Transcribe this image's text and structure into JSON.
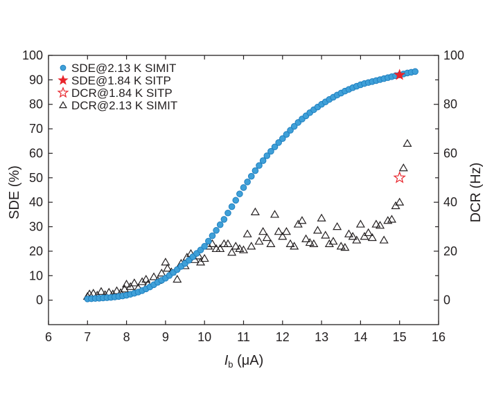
{
  "chart_data": {
    "type": "scatter",
    "title": "",
    "xlabel_main": "I",
    "xlabel_sub": "b",
    "xlabel_unit": " (μA)",
    "ylabel": "SDE (%)",
    "y2label": "DCR (Hz)",
    "xlim": [
      6,
      16
    ],
    "ylim": [
      -10,
      100
    ],
    "y2lim": [
      -10,
      100
    ],
    "xticks": [
      6,
      7,
      8,
      9,
      10,
      11,
      12,
      13,
      14,
      15,
      16
    ],
    "yticks": [
      0,
      10,
      20,
      30,
      40,
      50,
      60,
      70,
      80,
      90,
      100
    ],
    "y2ticks": [
      0,
      20,
      40,
      60,
      80,
      100
    ],
    "y2minor": [
      10,
      30,
      50,
      70,
      90
    ],
    "legend_position": "top-left",
    "series": [
      {
        "name": "SDE@2.13 K SIMIT",
        "axis": "left",
        "marker": "circle",
        "color": "#3fa0d8",
        "x_start": 7.0,
        "x_step": 0.1,
        "values": [
          0.5,
          0.6,
          0.7,
          0.8,
          0.9,
          1.0,
          1.1,
          1.3,
          1.5,
          1.7,
          2.0,
          2.4,
          2.8,
          3.3,
          3.9,
          4.6,
          5.4,
          6.3,
          7.3,
          8.1,
          9.0,
          10.1,
          11.3,
          12.5,
          13.8,
          15.0,
          16.3,
          17.7,
          19.1,
          20.5,
          22.0,
          24.1,
          26.3,
          28.5,
          30.8,
          33.0,
          35.6,
          38.2,
          40.8,
          43.4,
          46.0,
          48.3,
          50.6,
          52.9,
          55.0,
          57.0,
          59.0,
          60.8,
          62.6,
          64.4,
          66.0,
          67.7,
          69.4,
          71.0,
          72.6,
          74.0,
          75.3,
          76.6,
          77.8,
          78.9,
          80.0,
          81.0,
          82.0,
          82.9,
          83.8,
          84.6,
          85.4,
          86.1,
          86.8,
          87.4,
          88.0,
          88.5,
          88.9,
          89.3,
          89.7,
          90.1,
          90.5,
          90.9,
          91.3,
          91.7,
          92.0,
          92.4,
          92.8,
          93.1,
          93.4
        ]
      },
      {
        "name": "SDE@1.84 K SITP",
        "axis": "left",
        "marker": "filled-star",
        "color": "#e8242b",
        "points": [
          [
            15.0,
            92
          ]
        ]
      },
      {
        "name": "DCR@1.84 K SITP",
        "axis": "right",
        "marker": "open-star",
        "color": "#e8242b",
        "points": [
          [
            15.0,
            50
          ]
        ]
      },
      {
        "name": "DCR@2.13 K SIMIT",
        "axis": "right",
        "marker": "open-triangle",
        "color": "#231f20",
        "points": [
          [
            7.0,
            1.5
          ],
          [
            7.05,
            2.5
          ],
          [
            7.15,
            2.8
          ],
          [
            7.25,
            2.0
          ],
          [
            7.35,
            3.5
          ],
          [
            7.45,
            2.2
          ],
          [
            7.55,
            3.2
          ],
          [
            7.65,
            2.5
          ],
          [
            7.75,
            3.8
          ],
          [
            7.85,
            3.0
          ],
          [
            7.95,
            4.5
          ],
          [
            8.0,
            6.5
          ],
          [
            8.1,
            5.5
          ],
          [
            8.2,
            7.0
          ],
          [
            8.3,
            5.0
          ],
          [
            8.4,
            7.5
          ],
          [
            8.5,
            8.5
          ],
          [
            8.55,
            6.5
          ],
          [
            8.7,
            9.5
          ],
          [
            8.8,
            8.0
          ],
          [
            8.9,
            11.0
          ],
          [
            9.0,
            15.5
          ],
          [
            9.05,
            13.0
          ],
          [
            9.15,
            11.5
          ],
          [
            9.3,
            8.5
          ],
          [
            9.4,
            15.0
          ],
          [
            9.5,
            14.0
          ],
          [
            9.55,
            17.5
          ],
          [
            9.65,
            19.0
          ],
          [
            9.75,
            16.5
          ],
          [
            9.85,
            18.0
          ],
          [
            9.9,
            15.5
          ],
          [
            10.0,
            17.0
          ],
          [
            10.1,
            22.0
          ],
          [
            10.2,
            23.0
          ],
          [
            10.3,
            21.0
          ],
          [
            10.4,
            21.0
          ],
          [
            10.5,
            23.0
          ],
          [
            10.6,
            23.0
          ],
          [
            10.7,
            19.5
          ],
          [
            10.8,
            22.0
          ],
          [
            10.9,
            21.0
          ],
          [
            11.0,
            20.5
          ],
          [
            11.1,
            27.0
          ],
          [
            11.2,
            22.0
          ],
          [
            11.3,
            36.0
          ],
          [
            11.4,
            24.0
          ],
          [
            11.5,
            28.0
          ],
          [
            11.6,
            25.5
          ],
          [
            11.7,
            23.0
          ],
          [
            11.8,
            35.0
          ],
          [
            11.9,
            28.0
          ],
          [
            12.0,
            26.0
          ],
          [
            12.1,
            28.0
          ],
          [
            12.2,
            23.0
          ],
          [
            12.3,
            22.0
          ],
          [
            12.4,
            31.0
          ],
          [
            12.5,
            32.5
          ],
          [
            12.6,
            25.0
          ],
          [
            12.7,
            23.5
          ],
          [
            12.8,
            23.0
          ],
          [
            12.9,
            28.5
          ],
          [
            13.0,
            33.5
          ],
          [
            13.1,
            26.5
          ],
          [
            13.2,
            23.0
          ],
          [
            13.3,
            24.0
          ],
          [
            13.4,
            30.0
          ],
          [
            13.5,
            22.0
          ],
          [
            13.6,
            21.5
          ],
          [
            13.7,
            27.0
          ],
          [
            13.8,
            26.0
          ],
          [
            13.9,
            24.5
          ],
          [
            14.0,
            31.0
          ],
          [
            14.1,
            26.0
          ],
          [
            14.2,
            27.5
          ],
          [
            14.3,
            25.5
          ],
          [
            14.4,
            31.0
          ],
          [
            14.5,
            30.5
          ],
          [
            14.6,
            24.5
          ],
          [
            14.7,
            32.5
          ],
          [
            14.8,
            33.0
          ],
          [
            14.9,
            38.5
          ],
          [
            15.0,
            40.0
          ],
          [
            15.1,
            54.0
          ],
          [
            15.2,
            64.0
          ]
        ]
      }
    ]
  }
}
